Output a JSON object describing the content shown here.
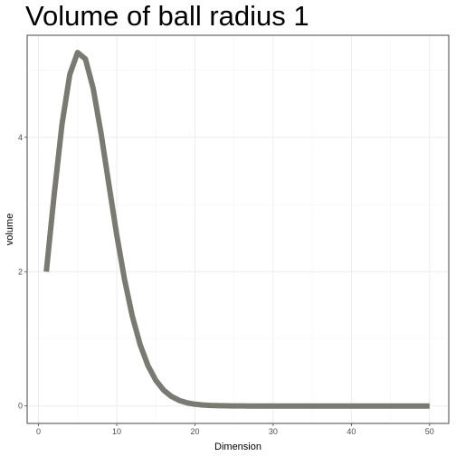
{
  "chart_data": {
    "type": "line",
    "title": "Volume of ball radius 1",
    "xlabel": "Dimension",
    "ylabel": "volume",
    "xlim": [
      -1.45,
      52.45
    ],
    "ylim": [
      -0.26,
      5.52
    ],
    "x_ticks": [
      0,
      10,
      20,
      30,
      40,
      50
    ],
    "y_ticks": [
      0,
      2,
      4
    ],
    "grid": true,
    "legend": "none",
    "series": [
      {
        "color": "#7a7a72",
        "x": [
          1,
          2,
          3,
          4,
          5,
          6,
          7,
          8,
          9,
          10,
          11,
          12,
          13,
          14,
          15,
          16,
          17,
          18,
          19,
          20,
          21,
          22,
          23,
          24,
          25,
          26,
          27,
          28,
          29,
          30,
          31,
          32,
          33,
          34,
          35,
          36,
          37,
          38,
          39,
          40,
          41,
          42,
          43,
          44,
          45,
          46,
          47,
          48,
          49,
          50
        ],
        "y": [
          2,
          3.1416,
          4.1888,
          4.9348,
          5.2638,
          5.1677,
          4.7248,
          4.0587,
          3.2985,
          2.5502,
          1.8841,
          1.3353,
          0.9106,
          0.5993,
          0.3814,
          0.2353,
          0.141,
          0.0821,
          0.0466,
          0.0258,
          0.0139,
          0.0073,
          0.0038,
          0.0019,
          0.00095,
          0.00047,
          0.00022,
          0.0001,
          4.7e-05,
          2.2e-05,
          1e-05,
          4.4e-06,
          1.9e-06,
          8e-07,
          4e-07,
          2e-07,
          1e-07,
          0,
          0,
          0,
          0,
          0,
          0,
          0,
          0,
          0,
          0,
          0,
          0,
          0
        ]
      }
    ]
  }
}
